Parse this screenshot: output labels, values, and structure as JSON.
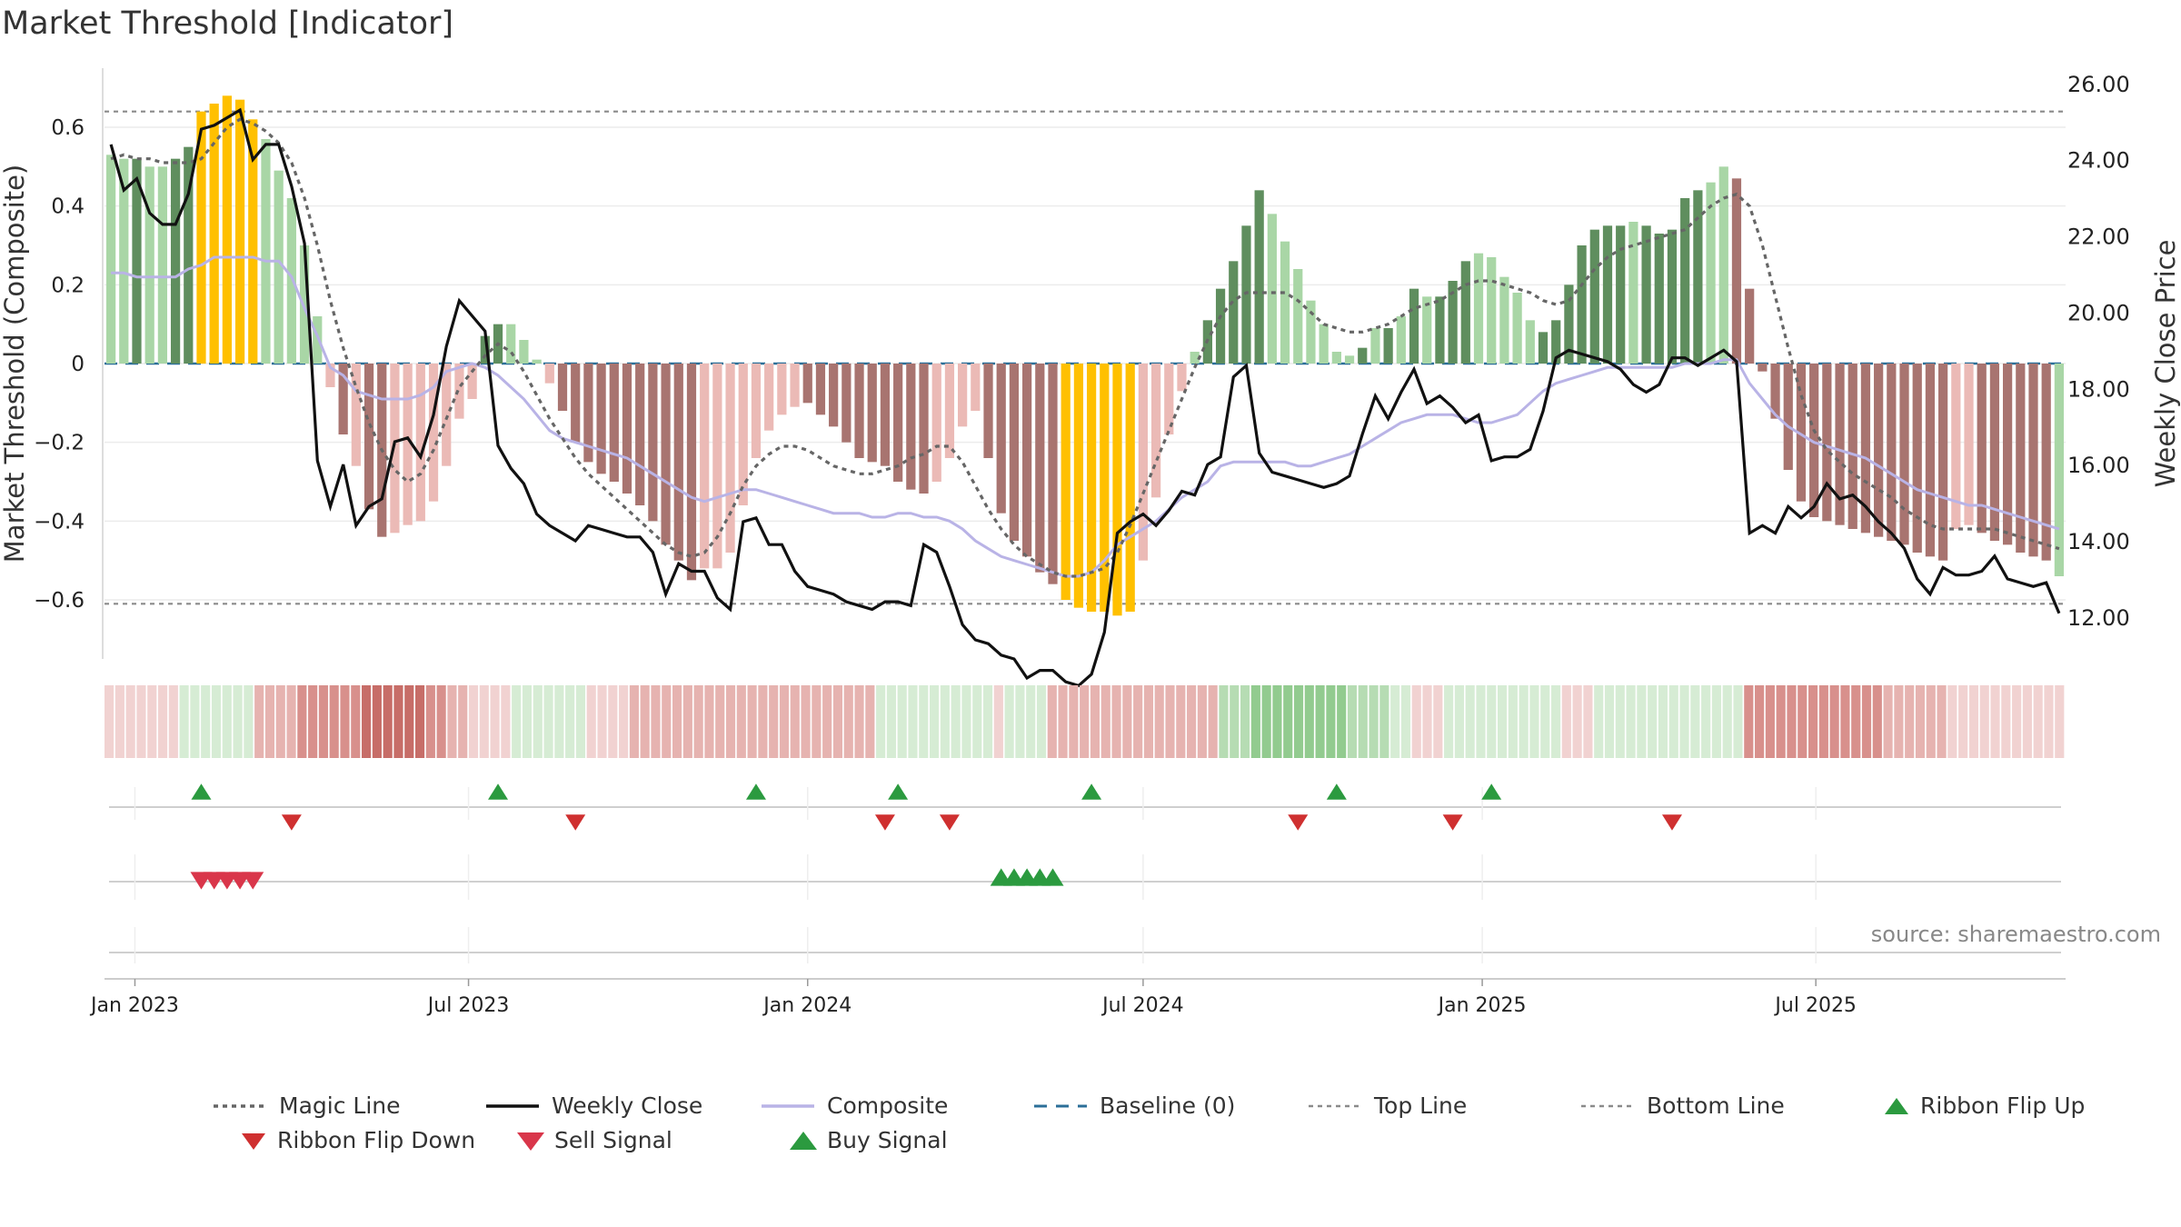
{
  "title": "Market Threshold [Indicator]",
  "source": "source: sharemaestro.com",
  "colors": {
    "up_dark": "#5f8e5e",
    "up_light": "#a9d6a6",
    "down_dark": "#a87470",
    "down_light": "#ebbab6",
    "extreme": "#ffc000",
    "magic": "#666666",
    "close": "#111111",
    "composite": "#b9b3e6",
    "baseline": "#2b6f98",
    "buy": "#2b9a3f",
    "sell": "#d9364a",
    "flip_up": "#2b9a3f",
    "flip_down": "#cf3030"
  },
  "chart_data": {
    "type": "bar+line",
    "y_left_label": "Market Threshold (Composite)",
    "y_right_label": "Weekly Close Price",
    "y_left_ticks": [
      "0.6",
      "0.4",
      "0.2",
      "0",
      "−0.2",
      "−0.4",
      "−0.6"
    ],
    "y_left_tick_values": [
      0.6,
      0.4,
      0.2,
      0,
      -0.2,
      -0.4,
      -0.6
    ],
    "y_right_ticks": [
      "26.00",
      "24.00",
      "22.00",
      "20.00",
      "18.00",
      "16.00",
      "14.00",
      "12.00"
    ],
    "y_right_tick_values": [
      26,
      24,
      22,
      20,
      18,
      16,
      14,
      12
    ],
    "y_left_range": [
      -0.75,
      0.75
    ],
    "y_right_range": [
      10.9,
      26.4
    ],
    "top_line": 0.64,
    "bottom_line": -0.61,
    "x_ticks": [
      {
        "label": "Jan 2023",
        "date": "2023-01-01"
      },
      {
        "label": "Jul 2023",
        "date": "2023-07-01"
      },
      {
        "label": "Jan 2024",
        "date": "2024-01-01"
      },
      {
        "label": "Jul 2024",
        "date": "2024-07-01"
      },
      {
        "label": "Jan 2025",
        "date": "2025-01-01"
      },
      {
        "label": "Jul 2025",
        "date": "2025-07-01"
      }
    ],
    "start_date": "2022-12-19",
    "composite_bars": [
      0.53,
      0.52,
      0.52,
      0.5,
      0.5,
      0.52,
      0.55,
      0.64,
      0.66,
      0.68,
      0.67,
      0.62,
      0.57,
      0.49,
      0.42,
      0.3,
      0.12,
      -0.06,
      -0.18,
      -0.26,
      -0.37,
      -0.44,
      -0.43,
      -0.41,
      -0.4,
      -0.35,
      -0.26,
      -0.14,
      -0.09,
      0.07,
      0.1,
      0.1,
      0.06,
      0.01,
      -0.05,
      -0.12,
      -0.2,
      -0.25,
      -0.28,
      -0.3,
      -0.33,
      -0.36,
      -0.4,
      -0.46,
      -0.5,
      -0.55,
      -0.52,
      -0.52,
      -0.48,
      -0.36,
      -0.24,
      -0.17,
      -0.13,
      -0.11,
      -0.1,
      -0.13,
      -0.16,
      -0.2,
      -0.24,
      -0.25,
      -0.26,
      -0.3,
      -0.32,
      -0.33,
      -0.3,
      -0.24,
      -0.16,
      -0.12,
      -0.24,
      -0.38,
      -0.45,
      -0.49,
      -0.53,
      -0.56,
      -0.6,
      -0.62,
      -0.63,
      -0.63,
      -0.64,
      -0.63,
      -0.5,
      -0.34,
      -0.18,
      -0.07,
      0.03,
      0.11,
      0.19,
      0.26,
      0.35,
      0.44,
      0.38,
      0.31,
      0.24,
      0.16,
      0.1,
      0.03,
      0.02,
      0.04,
      0.09,
      0.09,
      0.12,
      0.19,
      0.17,
      0.17,
      0.21,
      0.26,
      0.28,
      0.27,
      0.22,
      0.18,
      0.11,
      0.08,
      0.11,
      0.2,
      0.3,
      0.34,
      0.35,
      0.35,
      0.36,
      0.35,
      0.33,
      0.34,
      0.42,
      0.44,
      0.46,
      0.5,
      0.47,
      0.19,
      -0.02,
      -0.14,
      -0.27,
      -0.35,
      -0.39,
      -0.4,
      -0.41,
      -0.42,
      -0.43,
      -0.44,
      -0.45,
      -0.46,
      -0.48,
      -0.49,
      -0.5,
      -0.42,
      -0.41,
      -0.43,
      -0.45,
      -0.46,
      -0.48,
      -0.49,
      -0.5,
      -0.54
    ],
    "bar_kind": "up_light,up_light,up_dark,up_light,up_light,up_dark,up_dark,extreme,extreme,extreme,extreme,extreme,up_light,up_light,up_light,up_light,up_light,down_light,down_dark,down_light,down_dark,down_dark,down_light,down_light,down_light,down_light,down_light,down_light,down_light,up_dark,up_dark,up_light,up_light,up_light,down_light,down_dark,down_dark,down_dark,down_dark,down_dark,down_dark,down_dark,down_dark,down_dark,down_dark,down_dark,down_light,down_light,down_light,down_light,down_light,down_light,down_light,down_light,down_dark,down_dark,down_dark,down_dark,down_dark,down_dark,down_dark,down_dark,down_dark,down_dark,down_light,down_light,down_light,down_light,down_dark,down_dark,down_dark,down_dark,down_dark,down_dark,extreme,extreme,extreme,extreme,extreme,extreme,down_light,down_light,down_light,down_light,up_light,up_dark,up_dark,up_dark,up_dark,up_dark,up_light,up_light,up_light,up_light,up_light,up_light,up_light,up_dark,up_light,up_dark,up_light,up_dark,up_light,up_dark,up_dark,up_dark,up_light,up_light,up_light,up_light,up_light,up_dark,up_dark,up_dark,up_dark,up_dark,up_dark,up_dark,up_light,up_dark,up_dark,up_dark,up_dark,up_dark,up_light,up_light,down_dark,down_dark,down_dark,down_dark,down_dark,down_dark,down_dark,down_dark,down_dark,down_dark,down_dark,down_dark,down_dark,down_dark,down_dark,down_dark,down_dark,down_light,down_light,down_dark,down_dark,down_dark,down_dark,down_dark,down_dark",
    "magic_line": [
      0.52,
      0.53,
      0.52,
      0.52,
      0.51,
      0.51,
      0.51,
      0.52,
      0.56,
      0.6,
      0.62,
      0.61,
      0.59,
      0.56,
      0.51,
      0.42,
      0.3,
      0.16,
      0.04,
      -0.06,
      -0.15,
      -0.22,
      -0.27,
      -0.3,
      -0.28,
      -0.22,
      -0.14,
      -0.06,
      -0.02,
      0.02,
      0.05,
      0.03,
      -0.02,
      -0.08,
      -0.14,
      -0.19,
      -0.24,
      -0.28,
      -0.31,
      -0.34,
      -0.37,
      -0.4,
      -0.43,
      -0.46,
      -0.48,
      -0.49,
      -0.48,
      -0.44,
      -0.38,
      -0.31,
      -0.26,
      -0.23,
      -0.21,
      -0.21,
      -0.22,
      -0.24,
      -0.26,
      -0.27,
      -0.28,
      -0.28,
      -0.27,
      -0.26,
      -0.24,
      -0.23,
      -0.21,
      -0.21,
      -0.25,
      -0.31,
      -0.37,
      -0.42,
      -0.46,
      -0.49,
      -0.51,
      -0.53,
      -0.54,
      -0.54,
      -0.53,
      -0.52,
      -0.48,
      -0.41,
      -0.33,
      -0.25,
      -0.17,
      -0.09,
      -0.01,
      0.06,
      0.12,
      0.16,
      0.18,
      0.18,
      0.18,
      0.18,
      0.16,
      0.13,
      0.1,
      0.09,
      0.08,
      0.08,
      0.09,
      0.1,
      0.12,
      0.14,
      0.15,
      0.16,
      0.18,
      0.2,
      0.21,
      0.21,
      0.2,
      0.19,
      0.18,
      0.16,
      0.15,
      0.16,
      0.2,
      0.24,
      0.27,
      0.29,
      0.3,
      0.31,
      0.32,
      0.33,
      0.34,
      0.37,
      0.4,
      0.42,
      0.43,
      0.4,
      0.3,
      0.17,
      0.04,
      -0.08,
      -0.17,
      -0.22,
      -0.25,
      -0.28,
      -0.3,
      -0.32,
      -0.34,
      -0.37,
      -0.39,
      -0.41,
      -0.42,
      -0.42,
      -0.42,
      -0.42,
      -0.42,
      -0.43,
      -0.44,
      -0.45,
      -0.46,
      -0.47
    ],
    "composite_line": [
      0.23,
      0.23,
      0.22,
      0.22,
      0.22,
      0.22,
      0.24,
      0.25,
      0.27,
      0.27,
      0.27,
      0.27,
      0.26,
      0.26,
      0.22,
      0.14,
      0.07,
      -0.01,
      -0.03,
      -0.07,
      -0.08,
      -0.09,
      -0.09,
      -0.09,
      -0.08,
      -0.06,
      -0.02,
      -0.01,
      0.0,
      -0.01,
      -0.03,
      -0.06,
      -0.09,
      -0.13,
      -0.17,
      -0.19,
      -0.2,
      -0.21,
      -0.22,
      -0.23,
      -0.24,
      -0.26,
      -0.28,
      -0.3,
      -0.32,
      -0.34,
      -0.35,
      -0.34,
      -0.33,
      -0.32,
      -0.32,
      -0.33,
      -0.34,
      -0.35,
      -0.36,
      -0.37,
      -0.38,
      -0.38,
      -0.38,
      -0.39,
      -0.39,
      -0.38,
      -0.38,
      -0.39,
      -0.39,
      -0.4,
      -0.42,
      -0.45,
      -0.47,
      -0.49,
      -0.5,
      -0.51,
      -0.52,
      -0.53,
      -0.54,
      -0.54,
      -0.53,
      -0.5,
      -0.46,
      -0.44,
      -0.42,
      -0.4,
      -0.37,
      -0.34,
      -0.32,
      -0.3,
      -0.26,
      -0.25,
      -0.25,
      -0.25,
      -0.25,
      -0.25,
      -0.26,
      -0.26,
      -0.25,
      -0.24,
      -0.23,
      -0.21,
      -0.19,
      -0.17,
      -0.15,
      -0.14,
      -0.13,
      -0.13,
      -0.13,
      -0.14,
      -0.15,
      -0.15,
      -0.14,
      -0.13,
      -0.1,
      -0.07,
      -0.05,
      -0.04,
      -0.03,
      -0.02,
      -0.01,
      -0.01,
      -0.01,
      -0.01,
      -0.01,
      -0.01,
      0.0,
      0.0,
      0.0,
      0.01,
      0.01,
      -0.05,
      -0.09,
      -0.13,
      -0.16,
      -0.18,
      -0.2,
      -0.21,
      -0.22,
      -0.23,
      -0.24,
      -0.26,
      -0.28,
      -0.3,
      -0.32,
      -0.33,
      -0.34,
      -0.35,
      -0.36,
      -0.36,
      -0.37,
      -0.38,
      -0.39,
      -0.4,
      -0.41,
      -0.42
    ],
    "weekly_close": [
      24.4,
      23.2,
      23.5,
      22.6,
      22.3,
      22.3,
      23.1,
      24.8,
      24.9,
      25.1,
      25.3,
      24.0,
      24.4,
      24.4,
      23.3,
      21.8,
      16.1,
      14.9,
      16.0,
      14.4,
      14.9,
      15.1,
      16.6,
      16.7,
      16.2,
      17.3,
      19.1,
      20.3,
      19.9,
      19.5,
      16.5,
      15.9,
      15.5,
      14.7,
      14.4,
      14.2,
      14.0,
      14.4,
      14.3,
      14.2,
      14.1,
      14.1,
      13.7,
      12.6,
      13.4,
      13.2,
      13.2,
      12.5,
      12.2,
      14.5,
      14.6,
      13.9,
      13.9,
      13.2,
      12.8,
      12.7,
      12.6,
      12.4,
      12.3,
      12.2,
      12.4,
      12.4,
      12.3,
      13.9,
      13.7,
      12.8,
      11.8,
      11.4,
      11.3,
      11.0,
      10.9,
      10.4,
      10.6,
      10.6,
      10.3,
      10.2,
      10.5,
      11.6,
      14.2,
      14.5,
      14.7,
      14.4,
      14.8,
      15.3,
      15.2,
      16.0,
      16.2,
      18.3,
      18.6,
      16.3,
      15.8,
      15.7,
      15.6,
      15.5,
      15.4,
      15.5,
      15.7,
      16.8,
      17.8,
      17.2,
      17.9,
      18.5,
      17.6,
      17.8,
      17.5,
      17.1,
      17.3,
      16.1,
      16.2,
      16.2,
      16.4,
      17.4,
      18.8,
      19.0,
      18.9,
      18.8,
      18.7,
      18.5,
      18.1,
      17.9,
      18.1,
      18.8,
      18.8,
      18.6,
      18.8,
      19.0,
      18.7,
      14.2,
      14.4,
      14.2,
      14.9,
      14.6,
      14.9,
      15.5,
      15.1,
      15.2,
      14.9,
      14.5,
      14.2,
      13.8,
      13.0,
      12.6,
      13.3,
      13.1,
      13.1,
      13.2,
      13.6,
      13.0,
      12.9,
      12.8,
      12.9,
      12.1
    ],
    "ribbon_levels": [
      -1,
      -1,
      -1,
      -1,
      -1,
      -1,
      -1,
      1,
      1,
      1,
      1,
      1,
      1,
      1,
      -2,
      -2,
      -2,
      -2,
      -3,
      -3,
      -3,
      -3,
      -3,
      -3,
      -4,
      -4,
      -4,
      -4,
      -4,
      -4,
      -3,
      -3,
      -2,
      -2,
      -1,
      -1,
      -1,
      -1,
      1,
      1,
      1,
      1,
      1,
      1,
      1,
      -1,
      -1,
      -1,
      -1,
      -2,
      -2,
      -2,
      -2,
      -2,
      -2,
      -2,
      -2,
      -2,
      -2,
      -2,
      -2,
      -2,
      -2,
      -2,
      -2,
      -2,
      -2,
      -2,
      -2,
      -2,
      -2,
      -2,
      1,
      1,
      1,
      1,
      1,
      1,
      1,
      1,
      1,
      1,
      1,
      -1,
      1,
      1,
      1,
      1,
      -2,
      -2,
      -2,
      -2,
      -2,
      -2,
      -2,
      -2,
      -2,
      -2,
      -2,
      -2,
      -2,
      -2,
      -2,
      -2,
      2,
      2,
      2,
      3,
      3,
      3,
      3,
      3,
      3,
      3,
      3,
      3,
      2,
      2,
      2,
      2,
      1,
      1,
      -1,
      -1,
      -1,
      1,
      1,
      1,
      1,
      1,
      1,
      1,
      1,
      1,
      1,
      1,
      -1,
      -1,
      -1,
      1,
      1,
      1,
      1,
      1,
      1,
      1,
      1,
      1,
      1,
      1,
      1,
      1,
      1,
      -3,
      -3,
      -3,
      -3,
      -3,
      -3,
      -3,
      -3,
      -3,
      -3,
      -3,
      -3,
      -3,
      -2,
      -2,
      -2,
      -2,
      -2,
      -2,
      -1,
      -1,
      -1,
      -1,
      -1,
      -1,
      -1,
      -1,
      -1,
      -1,
      -1
    ],
    "ribbon_flip_up_weeks": [
      7,
      30,
      50,
      61,
      76,
      95,
      107
    ],
    "ribbon_flip_down_weeks": [
      14,
      36,
      60,
      65,
      92,
      104,
      121
    ],
    "sell_signal_weeks": [
      7,
      8,
      9,
      10,
      11
    ],
    "buy_signal_weeks": [
      69,
      70,
      71,
      72,
      73
    ]
  },
  "legend": [
    {
      "key": "magic",
      "label": "Magic Line"
    },
    {
      "key": "close",
      "label": "Weekly Close"
    },
    {
      "key": "composite",
      "label": "Composite"
    },
    {
      "key": "baseline",
      "label": "Baseline (0)"
    },
    {
      "key": "top",
      "label": "Top Line"
    },
    {
      "key": "bottom",
      "label": "Bottom Line"
    },
    {
      "key": "flip_up",
      "label": "Ribbon Flip Up"
    },
    {
      "key": "flip_down",
      "label": "Ribbon Flip Down"
    },
    {
      "key": "sell",
      "label": "Sell Signal"
    },
    {
      "key": "buy",
      "label": "Buy Signal"
    }
  ]
}
